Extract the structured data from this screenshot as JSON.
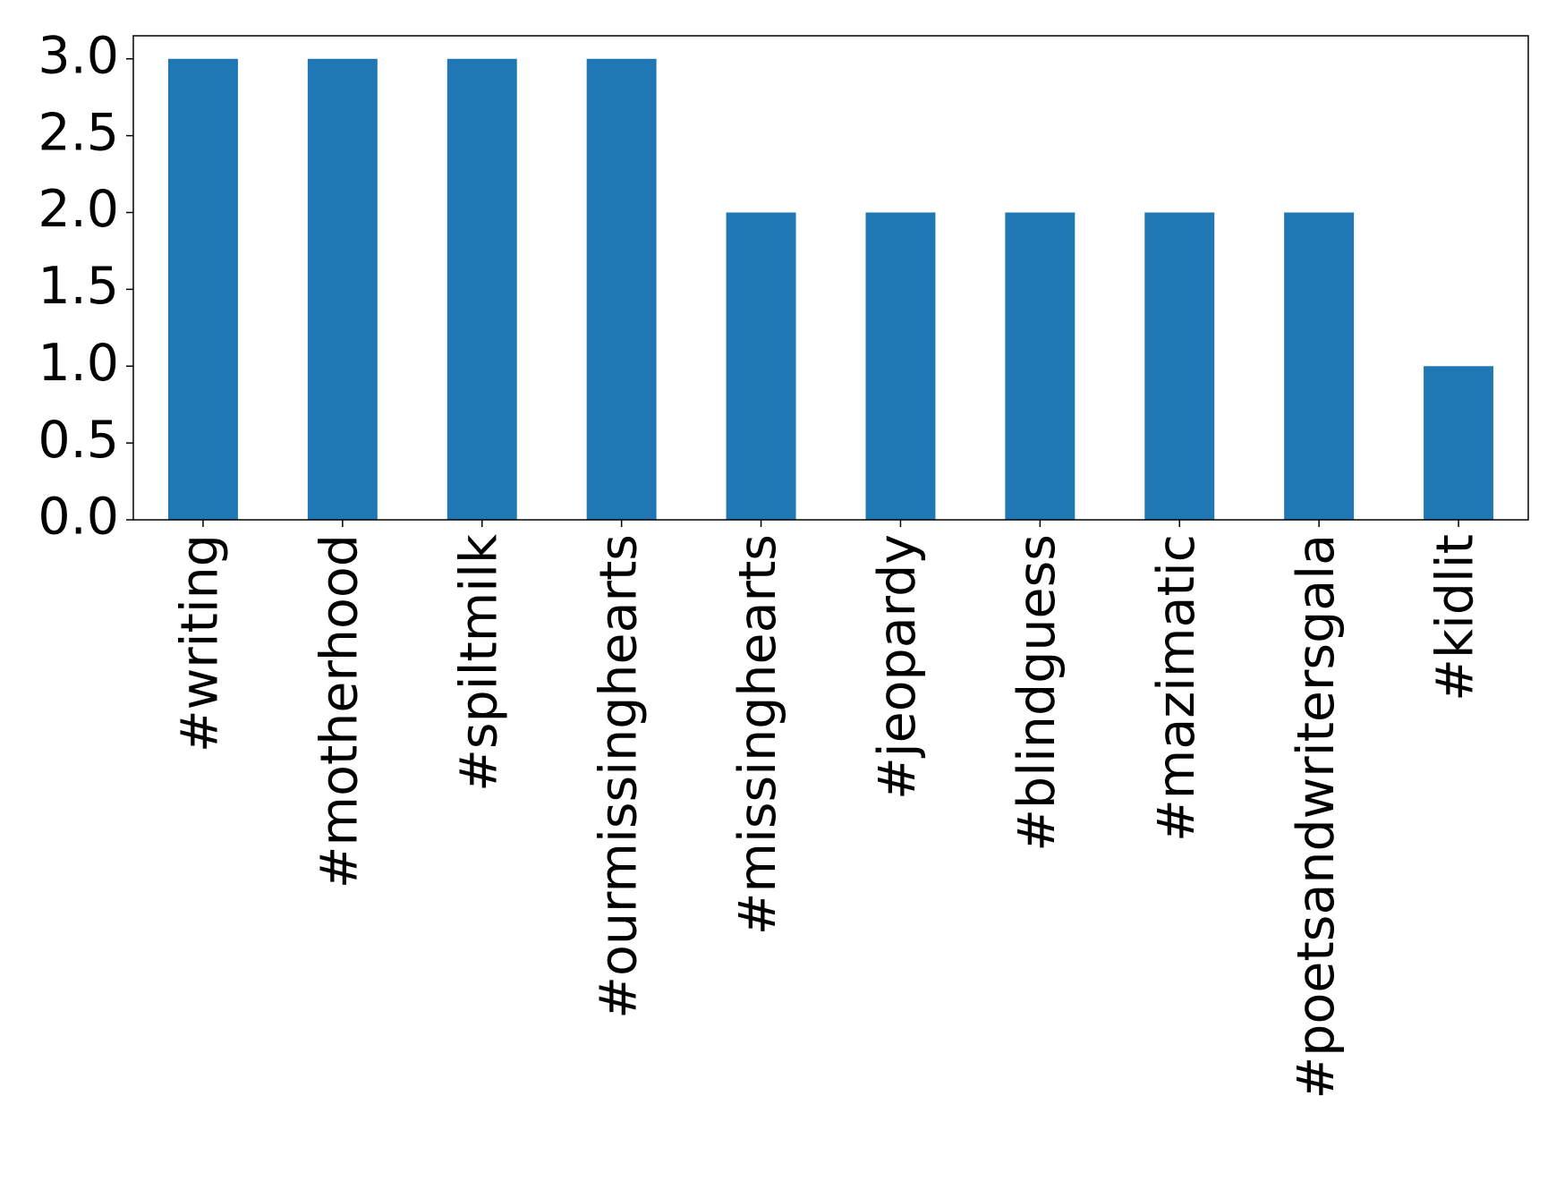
{
  "chart_data": {
    "type": "bar",
    "categories": [
      "#writing",
      "#motherhood",
      "#spiltmilk",
      "#ourmissinghearts",
      "#missinghearts",
      "#jeopardy",
      "#blindguess",
      "#mazimatic",
      "#poetsandwritersgala",
      "#kidlit"
    ],
    "values": [
      3,
      3,
      3,
      3,
      2,
      2,
      2,
      2,
      2,
      1
    ],
    "color": "#1f77b4",
    "ylim": [
      0,
      3.15
    ],
    "yticks": [
      {
        "value": 0,
        "label": "0.0"
      },
      0.5,
      {
        "value": 1,
        "label": "1.0"
      },
      1.5,
      {
        "value": 2,
        "label": "2.0"
      },
      2.5,
      {
        "value": 3,
        "label": "3.0"
      }
    ],
    "grid": false
  }
}
